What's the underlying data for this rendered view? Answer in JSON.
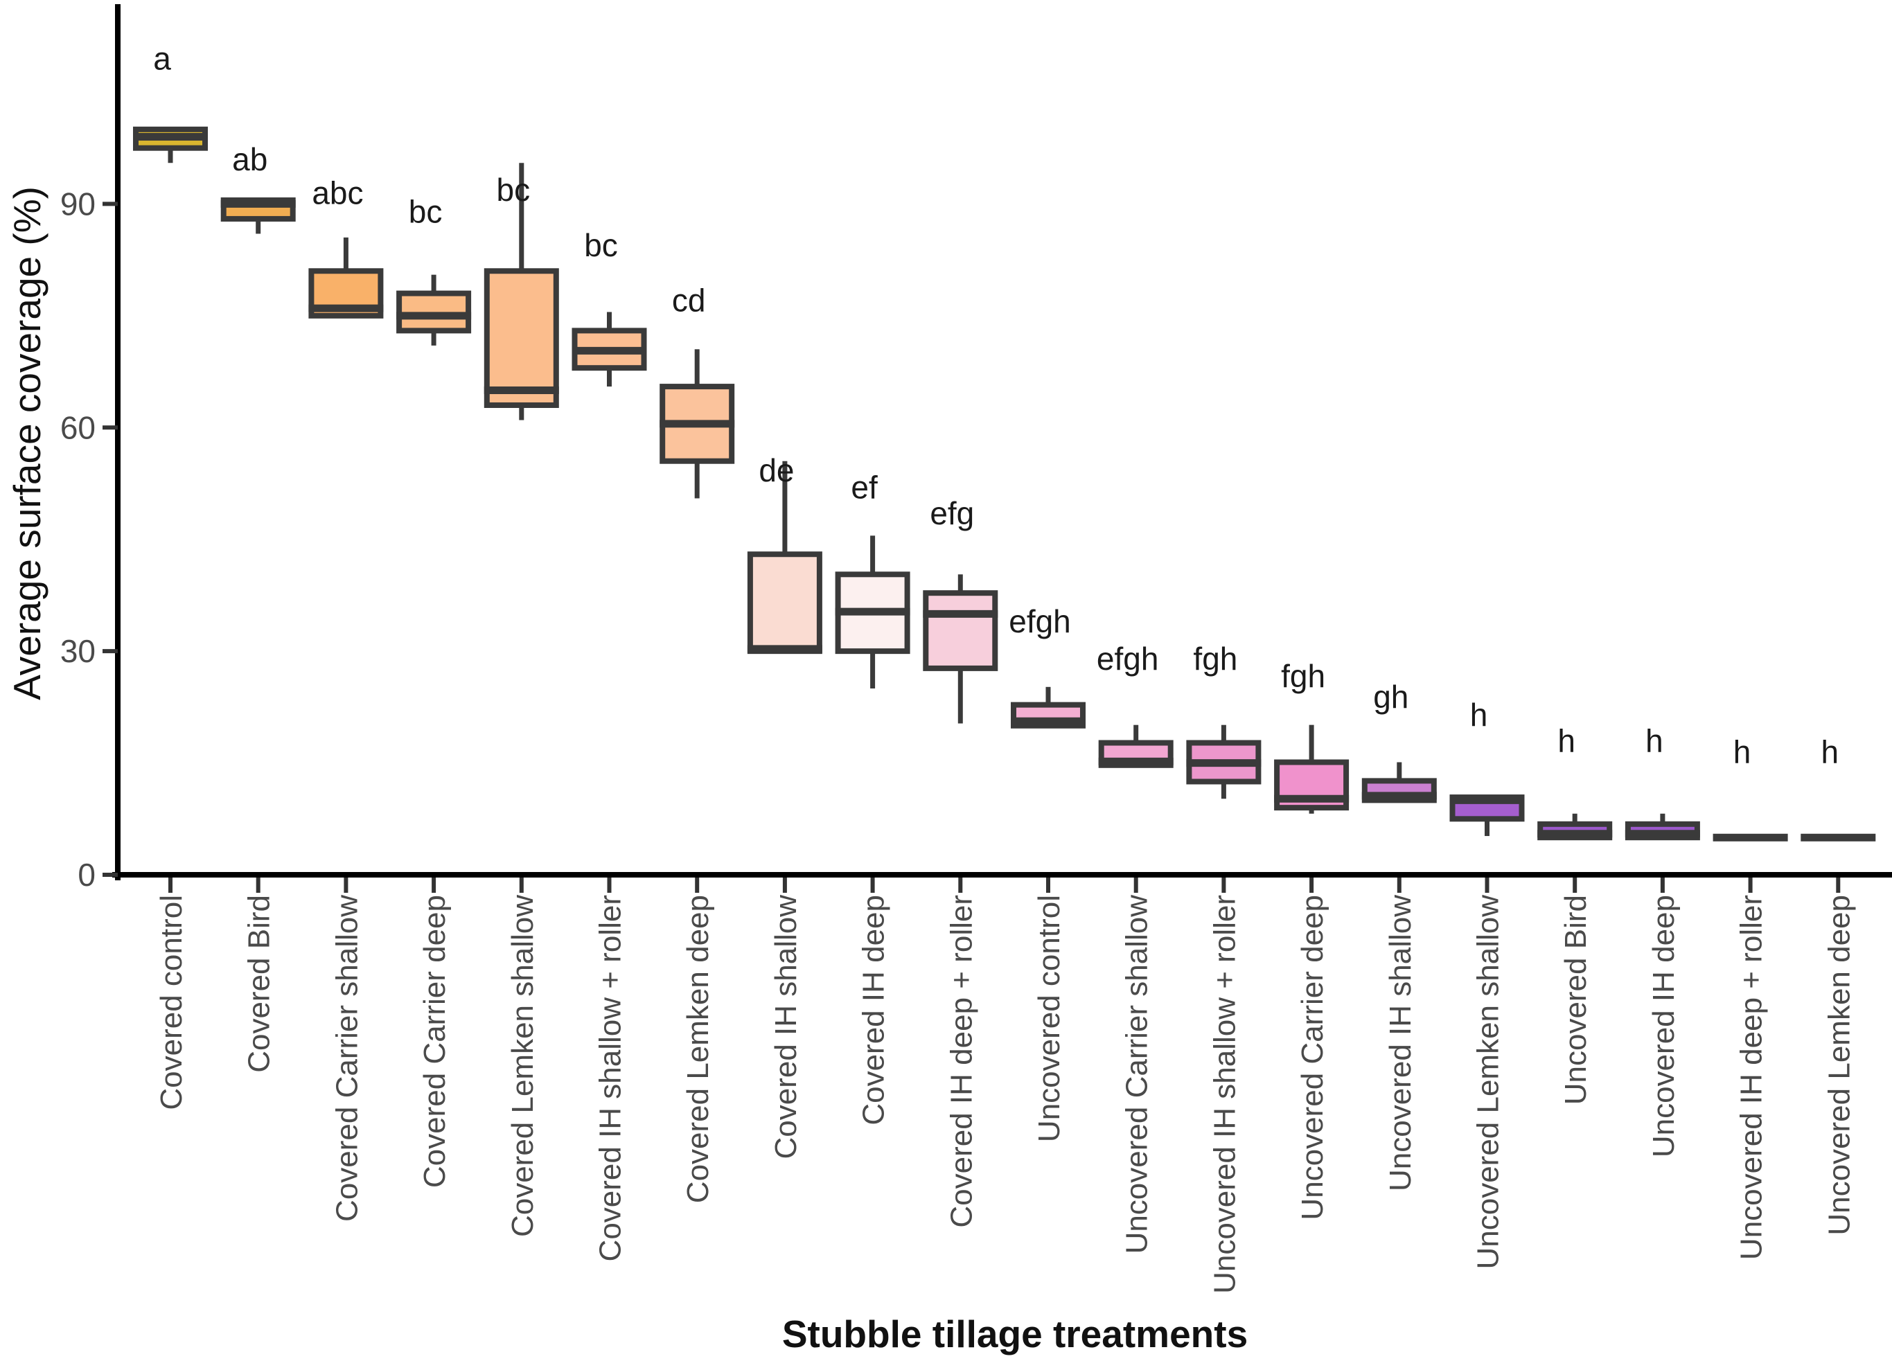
{
  "chart_data": {
    "type": "boxplot",
    "title": "",
    "xlabel": "Stubble tillage treatments",
    "ylabel": "Average surface coverage (%)",
    "ylim": [
      0,
      110
    ],
    "y_ticks": [
      0,
      30,
      60,
      90
    ],
    "grid": "off",
    "legend": "none",
    "categories": [
      "Covered control",
      "Covered Bird",
      "Covered Carrier shallow",
      "Covered Carrier deep",
      "Covered Lemken shallow",
      "Covered IH shallow + roller",
      "Covered Lemken deep",
      "Covered IH shallow",
      "Covered IH deep",
      "Covered IH deep + roller",
      "Uncovered control",
      "Uncovered Carrier shallow",
      "Uncovered IH shallow + roller",
      "Uncovered Carrier deep",
      "Uncovered IH shallow",
      "Uncovered Lemken shallow",
      "Uncovered Bird",
      "Uncovered IH deep",
      "Uncovered IH deep + roller",
      "Uncovered Lemken deep"
    ],
    "series": [
      {
        "label": "Covered control",
        "letter": "a",
        "letter_v": 108,
        "low": 95.5,
        "q1": 97.5,
        "median": 99,
        "q3": 100,
        "high": null,
        "color": "#D9B62F"
      },
      {
        "label": "Covered Bird",
        "letter": "ab",
        "letter_v": 94.5,
        "low": 86,
        "q1": 88,
        "median": 90,
        "q3": 90.5,
        "high": null,
        "color": "#F1AD52"
      },
      {
        "label": "Covered Carrier shallow",
        "letter": "abc",
        "letter_v": 90,
        "low": null,
        "q1": 75,
        "median": 76,
        "q3": 81,
        "high": 85.5,
        "color": "#F9B169"
      },
      {
        "label": "Covered Carrier deep",
        "letter": "bc",
        "letter_v": 87.5,
        "low": 71,
        "q1": 73,
        "median": 75,
        "q3": 78,
        "high": 80.5,
        "color": "#FABB85"
      },
      {
        "label": "Covered Lemken shallow",
        "letter": "bc",
        "letter_v": 90.4,
        "low": 61,
        "q1": 63,
        "median": 65,
        "q3": 81,
        "high": 95.5,
        "color": "#FBBD8D"
      },
      {
        "label": "Covered IH shallow + roller",
        "letter": "bc",
        "letter_v": 83,
        "low": 65.5,
        "q1": 68,
        "median": 70.3,
        "q3": 73,
        "high": 75.5,
        "color": "#FBBE92"
      },
      {
        "label": "Covered Lemken deep",
        "letter": "cd",
        "letter_v": 75.6,
        "low": 50.5,
        "q1": 55.5,
        "median": 60.5,
        "q3": 65.5,
        "high": 70.5,
        "color": "#FBC39C"
      },
      {
        "label": "Covered IH shallow",
        "letter": "de",
        "letter_v": 52.8,
        "low": null,
        "q1": 30,
        "median": 30.3,
        "q3": 43,
        "high": 55.5,
        "color": "#FADCD2"
      },
      {
        "label": "Covered IH deep",
        "letter": "ef",
        "letter_v": 50.5,
        "low": 25,
        "q1": 30,
        "median": 35.3,
        "q3": 40.3,
        "high": 45.5,
        "color": "#FCF0EF"
      },
      {
        "label": "Covered IH deep + roller",
        "letter": "efg",
        "letter_v": 47,
        "low": 20.3,
        "q1": 27.7,
        "median": 35,
        "q3": 37.8,
        "high": 40.3,
        "color": "#F7CFDC"
      },
      {
        "label": "Uncovered control",
        "letter": "efgh",
        "letter_v": 32.5,
        "low": null,
        "q1": 20,
        "median": 20.6,
        "q3": 22.8,
        "high": 25.2,
        "color": "#F4AFD2"
      },
      {
        "label": "Uncovered Carrier shallow",
        "letter": "efgh",
        "letter_v": 27.5,
        "low": null,
        "q1": 14.7,
        "median": 15.2,
        "q3": 17.7,
        "high": 20.1,
        "color": "#F2A6D1"
      },
      {
        "label": "Uncovered IH shallow + roller",
        "letter": "fgh",
        "letter_v": 27.5,
        "low": 10.2,
        "q1": 12.5,
        "median": 15,
        "q3": 17.7,
        "high": 20.1,
        "color": "#EC97CC"
      },
      {
        "label": "Uncovered Carrier deep",
        "letter": "fgh",
        "letter_v": 25.2,
        "low": 8.2,
        "q1": 9,
        "median": 10.2,
        "q3": 15.1,
        "high": 20.1,
        "color": "#F092CC"
      },
      {
        "label": "Uncovered IH shallow",
        "letter": "gh",
        "letter_v": 22.4,
        "low": null,
        "q1": 10,
        "median": 10.6,
        "q3": 12.6,
        "high": 15.1,
        "color": "#CA80D0"
      },
      {
        "label": "Uncovered Lemken shallow",
        "letter": "h",
        "letter_v": 20,
        "low": 5.2,
        "q1": 7.5,
        "median": 10,
        "q3": 10.4,
        "high": null,
        "color": "#A55ECF"
      },
      {
        "label": "Uncovered Bird",
        "letter": "h",
        "letter_v": 16.5,
        "low": null,
        "q1": 5,
        "median": 5.5,
        "q3": 6.8,
        "high": 8.2,
        "color": "#9C59CC"
      },
      {
        "label": "Uncovered IH deep",
        "letter": "h",
        "letter_v": 16.5,
        "low": null,
        "q1": 5,
        "median": 5.5,
        "q3": 6.8,
        "high": 8.2,
        "color": "#9C59CC"
      },
      {
        "label": "Uncovered IH deep + roller",
        "letter": "h",
        "letter_v": 15,
        "low": null,
        "q1": 5,
        "median": 5,
        "q3": 5,
        "high": null,
        "color": "#9C59CC"
      },
      {
        "label": "Uncovered Lemken deep",
        "letter": "h",
        "letter_v": 15,
        "low": null,
        "q1": 5,
        "median": 5,
        "q3": 5,
        "high": null,
        "color": "#9C59CC"
      }
    ],
    "colors": {
      "box_border": "#3A3A3A",
      "axis": "#000000",
      "tick_label": "#4A4A4A",
      "letter_text": "#1A1A1A",
      "background": "#FFFFFF"
    }
  }
}
